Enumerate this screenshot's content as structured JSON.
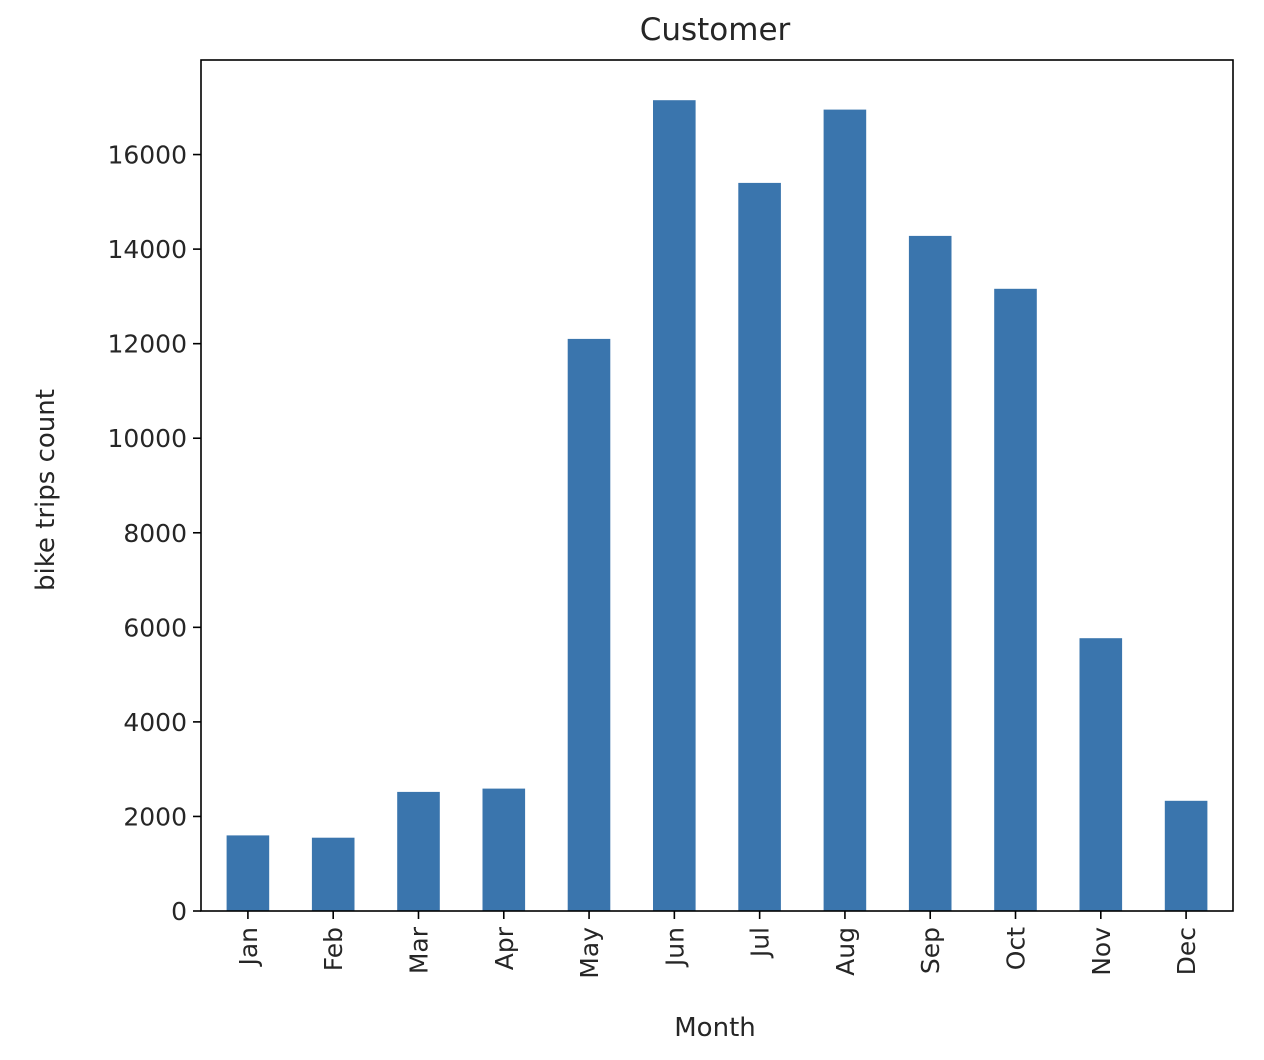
{
  "chart_data": {
    "type": "bar",
    "title": "Customer",
    "xlabel": "Month",
    "ylabel": "bike trips count",
    "categories": [
      "Jan",
      "Feb",
      "Mar",
      "Apr",
      "May",
      "Jun",
      "Jul",
      "Aug",
      "Sep",
      "Oct",
      "Nov",
      "Dec"
    ],
    "values": [
      1600,
      1550,
      2520,
      2590,
      12100,
      17150,
      15400,
      16950,
      14280,
      13160,
      5770,
      2330
    ],
    "ylim": [
      0,
      18000
    ],
    "yticks": [
      0,
      2000,
      4000,
      6000,
      8000,
      10000,
      12000,
      14000,
      16000
    ],
    "bar_color": "#3a75ad",
    "grid": false,
    "legend": "none"
  }
}
